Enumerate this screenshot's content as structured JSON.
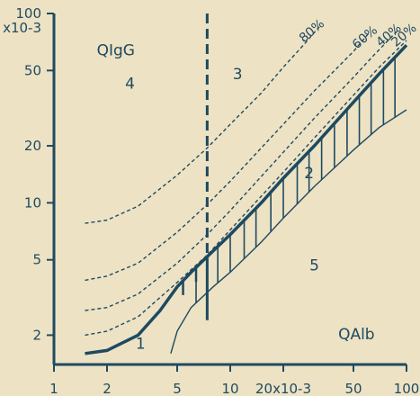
{
  "colors": {
    "background": "#ede2c4",
    "ink": "#1e4a60",
    "frame": "#1e4a60"
  },
  "chart_data": {
    "type": "line",
    "scale": "log-log",
    "xlim": [
      1,
      100
    ],
    "ylim": [
      0.0014,
      0.1
    ],
    "x_ticks": [
      {
        "v": 1,
        "label": "1"
      },
      {
        "v": 2,
        "label": "2"
      },
      {
        "v": 5,
        "label": "5"
      },
      {
        "v": 10,
        "label": "10"
      },
      {
        "v": 20,
        "label": "20x10-3"
      },
      {
        "v": 50,
        "label": "50"
      },
      {
        "v": 100,
        "label": "100"
      }
    ],
    "y_ticks": [
      {
        "v": 0.002,
        "label": "2"
      },
      {
        "v": 0.005,
        "label": "5"
      },
      {
        "v": 0.01,
        "label": "10"
      },
      {
        "v": 0.02,
        "label": "20"
      },
      {
        "v": 0.05,
        "label": "50"
      },
      {
        "v": 0.1,
        "label": "100"
      }
    ],
    "y_top_unit": "x10-3",
    "x_axis_unit_text": "20x10-3",
    "quotient_labels": {
      "y": "QIgG",
      "x": "QAlb"
    },
    "vertical_marker_x": 7.4,
    "area_labels": [
      {
        "text": "1",
        "x": 3.1,
        "y": 0.0017
      },
      {
        "text": "2",
        "x": 28,
        "y": 0.0135
      },
      {
        "text": "3",
        "x": 11,
        "y": 0.045
      },
      {
        "text": "4",
        "x": 2.7,
        "y": 0.04
      },
      {
        "text": "5",
        "x": 30,
        "y": 0.0044
      }
    ],
    "series": [
      {
        "name": "",
        "role": "upper-limit",
        "style": "solid-thick",
        "points": [
          [
            1.5,
            0.0016
          ],
          [
            2,
            0.00166
          ],
          [
            3,
            0.002
          ],
          [
            4,
            0.0027
          ],
          [
            5,
            0.0036
          ],
          [
            6,
            0.0043
          ],
          [
            7.4,
            0.0052
          ],
          [
            10,
            0.0068
          ],
          [
            15,
            0.01
          ],
          [
            20,
            0.0135
          ],
          [
            30,
            0.02
          ],
          [
            50,
            0.034
          ],
          [
            70,
            0.048
          ],
          [
            100,
            0.068
          ]
        ]
      },
      {
        "name": "",
        "role": "lower-limit",
        "style": "solid-thin",
        "points": [
          [
            4.6,
            0.0016
          ],
          [
            5,
            0.0021
          ],
          [
            6,
            0.0028
          ],
          [
            8,
            0.0036
          ],
          [
            10,
            0.0043
          ],
          [
            15,
            0.0062
          ],
          [
            20,
            0.0083
          ],
          [
            30,
            0.0122
          ],
          [
            50,
            0.019
          ],
          [
            70,
            0.025
          ],
          [
            100,
            0.031
          ]
        ]
      },
      {
        "name": "20%",
        "style": "dashed",
        "points": [
          [
            1.5,
            0.002
          ],
          [
            2,
            0.0021
          ],
          [
            3,
            0.0025
          ],
          [
            5,
            0.0038
          ],
          [
            7.4,
            0.0053
          ],
          [
            10,
            0.0072
          ],
          [
            20,
            0.0145
          ],
          [
            30,
            0.022
          ],
          [
            50,
            0.037
          ],
          [
            70,
            0.052
          ],
          [
            100,
            0.072
          ]
        ]
      },
      {
        "name": "40%",
        "style": "dashed",
        "points": [
          [
            1.5,
            0.0027
          ],
          [
            2,
            0.0028
          ],
          [
            3,
            0.0033
          ],
          [
            5,
            0.0048
          ],
          [
            7.4,
            0.0068
          ],
          [
            10,
            0.0091
          ],
          [
            20,
            0.0185
          ],
          [
            30,
            0.028
          ],
          [
            50,
            0.046
          ],
          [
            65,
            0.06
          ],
          [
            90,
            0.082
          ]
        ]
      },
      {
        "name": "60%",
        "style": "dashed",
        "points": [
          [
            1.5,
            0.0039
          ],
          [
            2,
            0.0041
          ],
          [
            3,
            0.0048
          ],
          [
            5,
            0.007
          ],
          [
            7.4,
            0.0098
          ],
          [
            10,
            0.013
          ],
          [
            20,
            0.026
          ],
          [
            30,
            0.039
          ],
          [
            50,
            0.063
          ],
          [
            62,
            0.08
          ]
        ]
      },
      {
        "name": "80%",
        "style": "dashed",
        "points": [
          [
            1.5,
            0.0078
          ],
          [
            2,
            0.0081
          ],
          [
            3,
            0.0096
          ],
          [
            5,
            0.014
          ],
          [
            7.4,
            0.0195
          ],
          [
            10,
            0.026
          ],
          [
            15,
            0.038
          ],
          [
            20,
            0.052
          ],
          [
            26,
            0.068
          ],
          [
            32,
            0.085
          ]
        ]
      }
    ],
    "series_label_positions": [
      {
        "name": "80%",
        "x": 30,
        "y": 0.078
      },
      {
        "name": "60%",
        "x": 60,
        "y": 0.072
      },
      {
        "name": "40%",
        "x": 82,
        "y": 0.074
      },
      {
        "name": "20%",
        "x": 100,
        "y": 0.074
      }
    ],
    "hatch_x": [
      6.4,
      7.4,
      8.5,
      10,
      12,
      14,
      17,
      20,
      24,
      28,
      33,
      39,
      46,
      54,
      63,
      74,
      86
    ],
    "short_marks_x": [
      5.4,
      6.4
    ]
  }
}
